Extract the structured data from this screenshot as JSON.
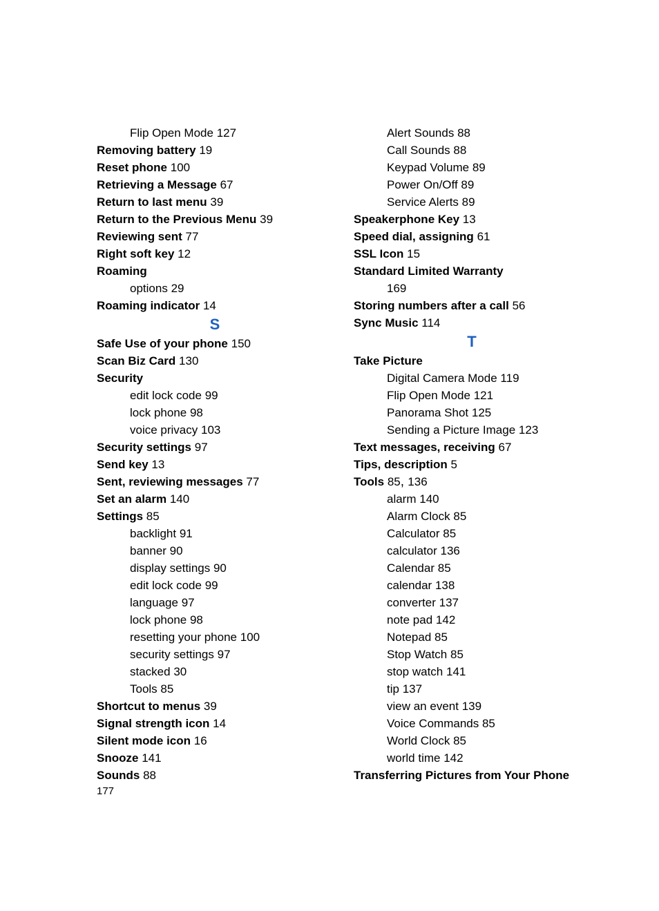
{
  "letters": {
    "s": "S",
    "t": "T"
  },
  "left": [
    {
      "t": "sub",
      "label": "Flip Open Mode",
      "page": "127"
    },
    {
      "t": "bold",
      "label": "Removing battery",
      "page": "19"
    },
    {
      "t": "bold",
      "label": "Reset phone",
      "page": "100"
    },
    {
      "t": "bold",
      "label": "Retrieving a Message",
      "page": "67"
    },
    {
      "t": "bold",
      "label": "Return to last menu",
      "page": "39"
    },
    {
      "t": "bold",
      "label": "Return to the Previous Menu",
      "page": "39"
    },
    {
      "t": "bold",
      "label": "Reviewing sent",
      "page": "77"
    },
    {
      "t": "bold",
      "label": "Right soft key",
      "page": "12"
    },
    {
      "t": "boldonly",
      "label": "Roaming"
    },
    {
      "t": "sub",
      "label": "options",
      "page": "29"
    },
    {
      "t": "bold",
      "label": "Roaming indicator",
      "page": "14"
    },
    {
      "t": "letter",
      "key": "s"
    },
    {
      "t": "bold",
      "label": "Safe Use of your phone",
      "page": "150"
    },
    {
      "t": "bold",
      "label": "Scan Biz Card",
      "page": "130"
    },
    {
      "t": "boldonly",
      "label": "Security"
    },
    {
      "t": "sub",
      "label": "edit lock code",
      "page": "99"
    },
    {
      "t": "sub",
      "label": "lock phone",
      "page": "98"
    },
    {
      "t": "sub",
      "label": "voice privacy",
      "page": "103"
    },
    {
      "t": "bold",
      "label": "Security settings",
      "page": "97"
    },
    {
      "t": "bold",
      "label": "Send key",
      "page": "13"
    },
    {
      "t": "bold",
      "label": "Sent, reviewing messages",
      "page": "77"
    },
    {
      "t": "bold",
      "label": "Set an alarm",
      "page": "140"
    },
    {
      "t": "bold",
      "label": "Settings",
      "page": "85"
    },
    {
      "t": "sub",
      "label": "backlight",
      "page": "91"
    },
    {
      "t": "sub",
      "label": "banner",
      "page": "90"
    },
    {
      "t": "sub",
      "label": "display settings",
      "page": "90"
    },
    {
      "t": "sub",
      "label": "edit lock code",
      "page": "99"
    },
    {
      "t": "sub",
      "label": "language",
      "page": "97"
    },
    {
      "t": "sub",
      "label": "lock phone",
      "page": "98"
    },
    {
      "t": "sub",
      "label": "resetting your phone",
      "page": "100"
    },
    {
      "t": "sub",
      "label": "security settings",
      "page": "97"
    },
    {
      "t": "sub",
      "label": "stacked",
      "page": "30"
    },
    {
      "t": "sub",
      "label": "Tools",
      "page": "85"
    },
    {
      "t": "bold",
      "label": "Shortcut to menus",
      "page": "39"
    },
    {
      "t": "bold",
      "label": "Signal strength icon",
      "page": "14"
    },
    {
      "t": "bold",
      "label": "Silent mode icon",
      "page": "16"
    },
    {
      "t": "bold",
      "label": "Snooze",
      "page": "141"
    },
    {
      "t": "bold",
      "label": "Sounds",
      "page": "88"
    }
  ],
  "right": [
    {
      "t": "sub",
      "label": "Alert Sounds",
      "page": "88"
    },
    {
      "t": "sub",
      "label": "Call Sounds",
      "page": "88"
    },
    {
      "t": "sub",
      "label": "Keypad Volume",
      "page": "89"
    },
    {
      "t": "sub",
      "label": "Power On/Off",
      "page": "89"
    },
    {
      "t": "sub",
      "label": "Service Alerts",
      "page": "89"
    },
    {
      "t": "bold",
      "label": "Speakerphone Key",
      "page": "13"
    },
    {
      "t": "bold",
      "label": "Speed dial, assigning",
      "page": "61"
    },
    {
      "t": "bold",
      "label": "SSL Icon",
      "page": "15"
    },
    {
      "t": "boldonly",
      "label": "Standard Limited Warranty"
    },
    {
      "t": "subpageonly",
      "page": "169"
    },
    {
      "t": "bold",
      "label": "Storing numbers after a call",
      "page": "56"
    },
    {
      "t": "bold",
      "label": "Sync Music",
      "page": "114"
    },
    {
      "t": "letter",
      "key": "t"
    },
    {
      "t": "boldonly",
      "label": "Take Picture"
    },
    {
      "t": "sub",
      "label": "Digital Camera Mode",
      "page": "119"
    },
    {
      "t": "sub",
      "label": "Flip Open Mode",
      "page": "121"
    },
    {
      "t": "sub",
      "label": "Panorama Shot",
      "page": "125"
    },
    {
      "t": "sub",
      "label": "Sending a Picture Image",
      "page": "123"
    },
    {
      "t": "bold",
      "label": "Text messages, receiving",
      "page": "67"
    },
    {
      "t": "bold",
      "label": "Tips, description",
      "page": "5"
    },
    {
      "t": "bold2",
      "label": "Tools",
      "page": "85",
      "page2": "136"
    },
    {
      "t": "sub",
      "label": "alarm",
      "page": "140"
    },
    {
      "t": "sub",
      "label": "Alarm Clock",
      "page": "85"
    },
    {
      "t": "sub",
      "label": "Calculator",
      "page": "85"
    },
    {
      "t": "sub",
      "label": "calculator",
      "page": "136"
    },
    {
      "t": "sub",
      "label": "Calendar",
      "page": "85"
    },
    {
      "t": "sub",
      "label": "calendar",
      "page": "138"
    },
    {
      "t": "sub",
      "label": "converter",
      "page": "137"
    },
    {
      "t": "sub",
      "label": "note pad",
      "page": "142"
    },
    {
      "t": "sub",
      "label": "Notepad",
      "page": "85"
    },
    {
      "t": "sub",
      "label": "Stop Watch",
      "page": "85"
    },
    {
      "t": "sub",
      "label": "stop watch",
      "page": "141"
    },
    {
      "t": "sub",
      "label": "tip",
      "page": "137"
    },
    {
      "t": "sub",
      "label": "view an event",
      "page": "139"
    },
    {
      "t": "sub",
      "label": "Voice Commands",
      "page": "85"
    },
    {
      "t": "sub",
      "label": "World Clock",
      "page": "85"
    },
    {
      "t": "sub",
      "label": "world time",
      "page": "142"
    },
    {
      "t": "boldonly",
      "label": "Transferring Pictures from Your Phone"
    }
  ],
  "pageNumber": "177"
}
